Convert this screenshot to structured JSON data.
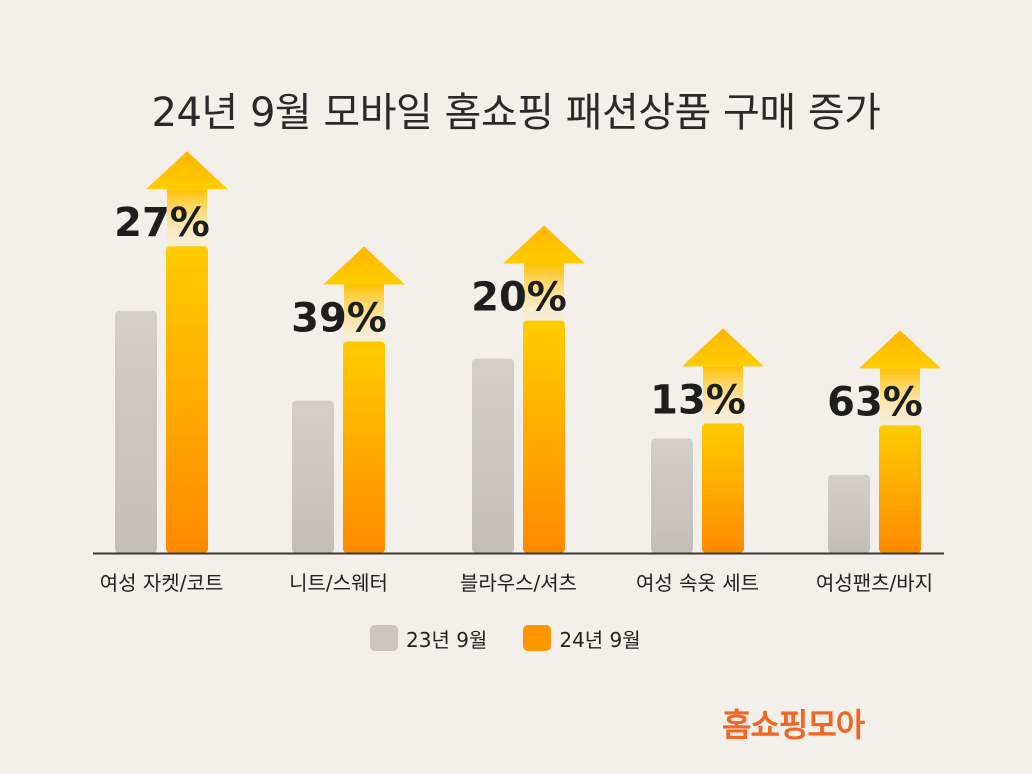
{
  "chart_data": {
    "type": "bar",
    "title": "24년 9월 모바일 홈쇼핑 패션상품 구매 증가",
    "categories": [
      "여성 자켓/코트",
      "니트/스웨터",
      "블라우스/셔츠",
      "여성 속옷 세트",
      "여성팬츠/바지"
    ],
    "series": [
      {
        "name": "23년 9월",
        "values": [
          1.27,
          0.8,
          1.02,
          0.6,
          0.41
        ],
        "color": "#cac5c0"
      },
      {
        "name": "24년 9월",
        "values": [
          1.61,
          1.11,
          1.22,
          0.68,
          0.67
        ],
        "color": "#ff9500"
      }
    ],
    "increase_labels": [
      "27%",
      "39%",
      "20%",
      "13%",
      "63%"
    ],
    "ylim": [
      0,
      1.8
    ],
    "grid": false,
    "legend": "bottom-center"
  },
  "brand": "홈쇼핑모아"
}
